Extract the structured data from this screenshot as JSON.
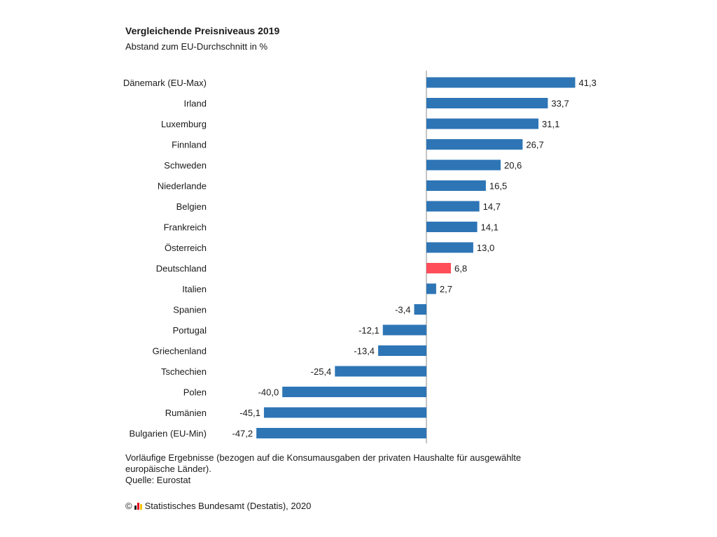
{
  "title": "Vergleichende Preisniveaus 2019",
  "subtitle": "Abstand zum EU-Durchschnitt in %",
  "chart_data": {
    "type": "bar",
    "orientation": "horizontal",
    "title": "Vergleichende Preisniveaus 2019",
    "subtitle": "Abstand zum EU-Durchschnitt in %",
    "xlabel": "",
    "ylabel": "",
    "xlim": [
      -47.2,
      41.3
    ],
    "categories": [
      "Dänemark (EU-Max)",
      "Irland",
      "Luxemburg",
      "Finnland",
      "Schweden",
      "Niederlande",
      "Belgien",
      "Frankreich",
      "Österreich",
      "Deutschland",
      "Italien",
      "Spanien",
      "Portugal",
      "Griechenland",
      "Tschechien",
      "Polen",
      "Rumänien",
      "Bulgarien (EU-Min)"
    ],
    "values": [
      41.3,
      33.7,
      31.1,
      26.7,
      20.6,
      16.5,
      14.7,
      14.1,
      13.0,
      6.8,
      2.7,
      -3.4,
      -12.1,
      -13.4,
      -25.4,
      -40.0,
      -45.1,
      -47.2
    ],
    "value_labels": [
      "41,3",
      "33,7",
      "31,1",
      "26,7",
      "20,6",
      "16,5",
      "14,7",
      "14,1",
      "13,0",
      "6,8",
      "2,7",
      "-3,4",
      "-12,1",
      "-13,4",
      "-25,4",
      "-40,0",
      "-45,1",
      "-47,2"
    ],
    "highlight": "Deutschland",
    "bar_color": "#2e75b6",
    "highlight_color": "#ff4d5a",
    "grid": false
  },
  "footnote": {
    "line1": "Vorläufige Ergebnisse (bezogen auf die Konsumausgaben der privaten Haushalte für ausgewählte",
    "line2": "europäische Länder).",
    "source": "Quelle: Eurostat"
  },
  "copyright": {
    "symbol": "©",
    "text": "Statistisches Bundesamt (Destatis), 2020",
    "logo_colors": [
      "#1a1a1a",
      "#e2001a",
      "#f4c300"
    ]
  }
}
